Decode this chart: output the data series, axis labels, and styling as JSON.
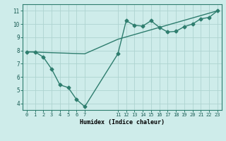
{
  "line1_x": [
    0,
    1,
    2,
    3,
    4,
    5,
    6,
    7,
    11,
    12,
    13,
    14,
    15,
    16,
    17,
    18,
    19,
    20,
    21,
    22,
    23
  ],
  "line1_y": [
    7.9,
    7.9,
    7.5,
    6.6,
    5.4,
    5.2,
    4.3,
    3.75,
    7.75,
    10.25,
    9.9,
    9.85,
    10.25,
    9.75,
    9.4,
    9.45,
    9.8,
    10.0,
    10.4,
    10.5,
    11.0
  ],
  "line2_x": [
    0,
    7,
    11,
    23
  ],
  "line2_y": [
    7.9,
    7.75,
    8.85,
    11.0
  ],
  "line_color": "#2e7d6e",
  "bg_color": "#ceecea",
  "grid_color": "#aed4d0",
  "xlabel": "Humidex (Indice chaleur)",
  "xlim": [
    -0.5,
    23.5
  ],
  "ylim": [
    3.5,
    11.5
  ],
  "xticks": [
    0,
    1,
    2,
    3,
    4,
    5,
    6,
    7,
    11,
    12,
    13,
    14,
    15,
    16,
    17,
    18,
    19,
    20,
    21,
    22,
    23
  ],
  "yticks": [
    4,
    5,
    6,
    7,
    8,
    9,
    10,
    11
  ],
  "marker": "D",
  "markersize": 2.5,
  "linewidth": 1.0
}
